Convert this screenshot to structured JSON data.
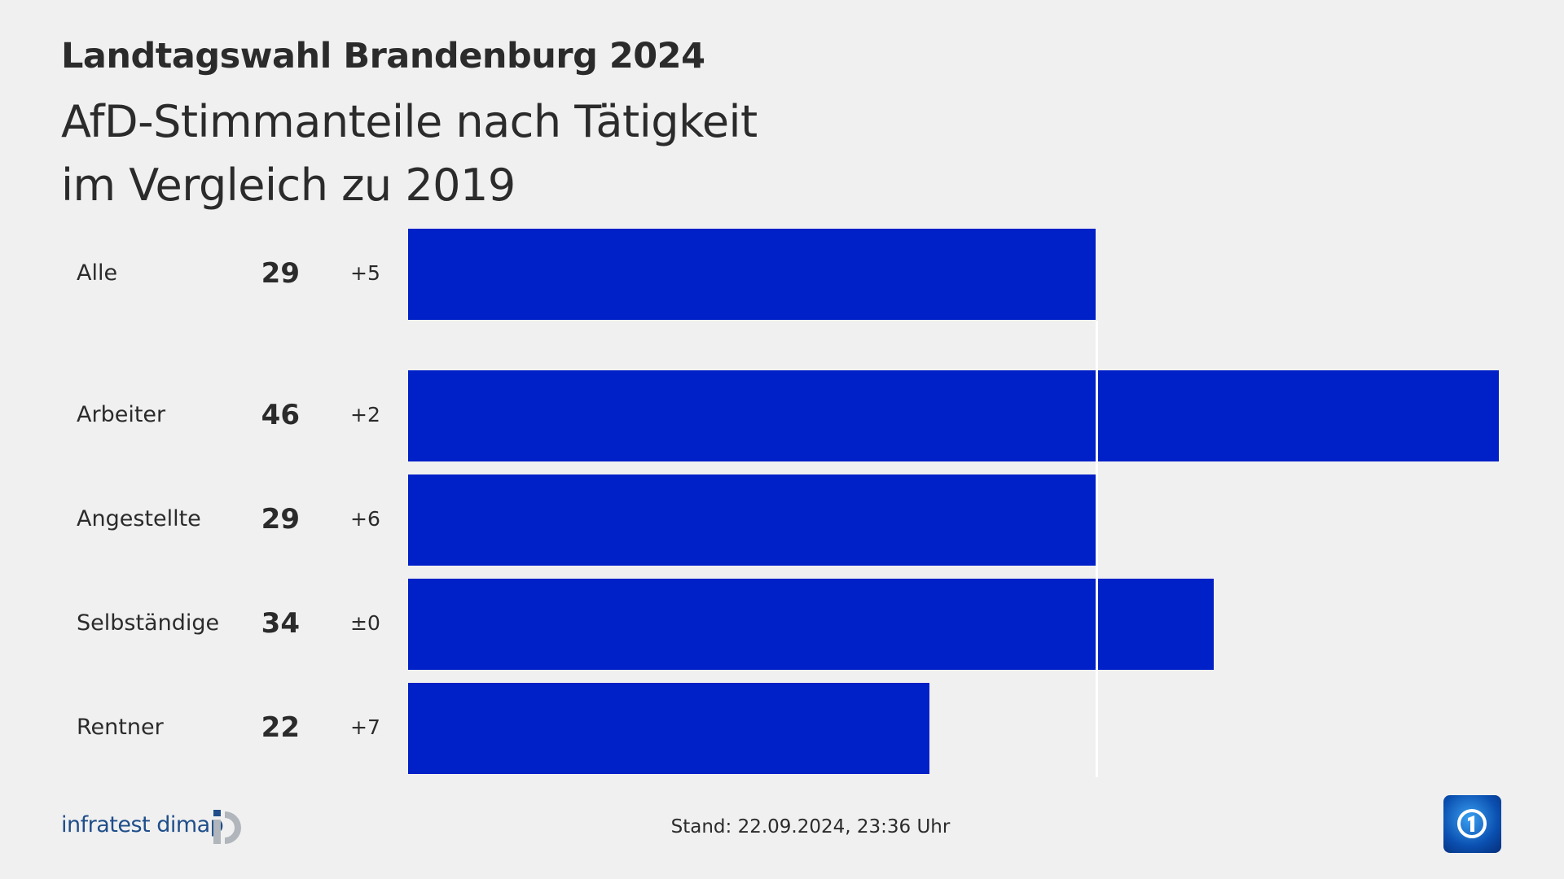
{
  "header": {
    "title": "Landtagswahl Brandenburg 2024",
    "subtitle_line1": "AfD-Stimmanteile nach Tätigkeit",
    "subtitle_line2": "im Vergleich zu 2019"
  },
  "chart_data": {
    "type": "bar",
    "orientation": "horizontal",
    "categories": [
      "Alle",
      "Arbeiter",
      "Angestellte",
      "Selbständige",
      "Rentner"
    ],
    "values": [
      29,
      46,
      29,
      34,
      22
    ],
    "change_labels": [
      "+5",
      "+2",
      "+6",
      "±0",
      "+7"
    ],
    "reference_value": 29,
    "xlim": [
      0,
      46
    ],
    "bar_color": "#0020c8",
    "reference_line_color": "#ffffff"
  },
  "footer": {
    "stand": "Stand:  22.09.2024, 23:36 Uhr",
    "source_logo": "infratest dimap",
    "broadcaster_logo": "tagesschau"
  }
}
